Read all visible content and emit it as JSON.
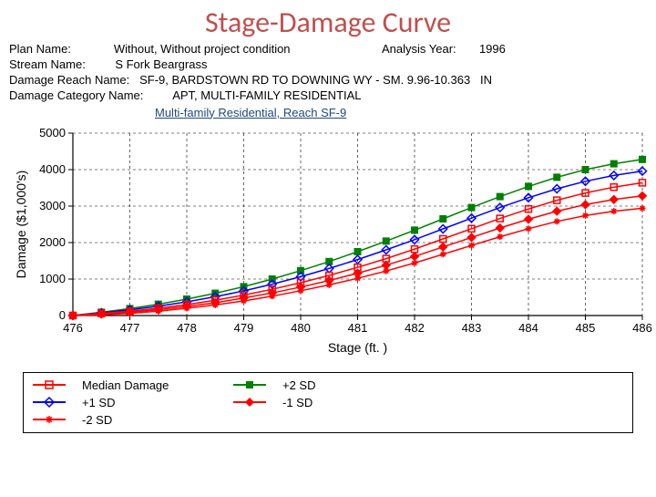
{
  "title": "Stage-Damage Curve",
  "meta": {
    "plan_label": "Plan Name:",
    "plan_value": "Without, Without project condition",
    "analysis_label": "Analysis Year:",
    "analysis_value": "1996",
    "stream_label": "Stream Name:",
    "stream_value": "S Fork Beargrass",
    "reach_label": "Damage Reach Name:",
    "reach_value": "SF-9, BARDSTOWN RD TO DOWNING WY - SM. 9.96-10.363   IN",
    "cat_label": "Damage Category Name:",
    "cat_value": "APT, MULTI-FAMILY RESIDENTIAL"
  },
  "subtitle": "Multi-family Residential, Reach SF-9",
  "chart": {
    "type": "line",
    "background_color": "#ffffff",
    "grid_color": "#000000",
    "grid_dash": "3,3",
    "axis_color": "#000000",
    "x": {
      "label": "Stage (ft. )",
      "min": 476,
      "max": 486,
      "ticks": [
        476,
        477,
        478,
        479,
        480,
        481,
        482,
        483,
        484,
        485,
        486
      ]
    },
    "y": {
      "label": "Damage ($1,000's)",
      "min": 0,
      "max": 5000,
      "ticks": [
        0,
        1000,
        2000,
        3000,
        4000,
        5000
      ]
    },
    "tick_fontsize": 13,
    "label_fontsize": 14,
    "x_values": [
      476,
      476.5,
      477,
      477.5,
      478,
      478.5,
      479,
      479.5,
      480,
      480.5,
      481,
      481.5,
      482,
      482.5,
      483,
      483.5,
      484,
      484.5,
      485,
      485.5,
      486
    ],
    "series": {
      "median": {
        "label": "Median Damage",
        "color": "#ff0000",
        "marker": "square-open",
        "y": [
          0,
          60,
          120,
          200,
          300,
          420,
          560,
          720,
          900,
          1100,
          1320,
          1560,
          1820,
          2100,
          2380,
          2660,
          2920,
          3160,
          3360,
          3520,
          3640
        ]
      },
      "minus1sd": {
        "label": "-1 SD",
        "color": "#ff0000",
        "marker": "diamond-solid",
        "y": [
          0,
          40,
          90,
          160,
          250,
          350,
          480,
          620,
          780,
          960,
          1160,
          1380,
          1620,
          1880,
          2140,
          2400,
          2640,
          2860,
          3040,
          3180,
          3280
        ]
      },
      "plus2sd": {
        "label": "+2 SD",
        "color": "#008000",
        "marker": "square-solid",
        "y": [
          0,
          90,
          190,
          310,
          450,
          610,
          790,
          1000,
          1230,
          1480,
          1750,
          2040,
          2340,
          2650,
          2960,
          3260,
          3540,
          3790,
          4000,
          4160,
          4280
        ]
      },
      "minus2sd": {
        "label": "-2 SD",
        "color": "#ff0000",
        "marker": "asterisk",
        "y": [
          0,
          20,
          60,
          120,
          200,
          290,
          400,
          530,
          680,
          840,
          1020,
          1220,
          1440,
          1680,
          1920,
          2160,
          2380,
          2580,
          2740,
          2860,
          2940
        ]
      },
      "plus1sd": {
        "label": "+1 SD",
        "color": "#0000ff",
        "marker": "diamond-open",
        "y": [
          0,
          75,
          155,
          255,
          375,
          515,
          675,
          860,
          1065,
          1290,
          1535,
          1800,
          2080,
          2375,
          2670,
          2960,
          3230,
          3475,
          3680,
          3840,
          3960
        ]
      }
    },
    "legend_order": [
      "median",
      "plus2sd",
      "plus1sd",
      "minus1sd",
      "minus2sd"
    ]
  }
}
